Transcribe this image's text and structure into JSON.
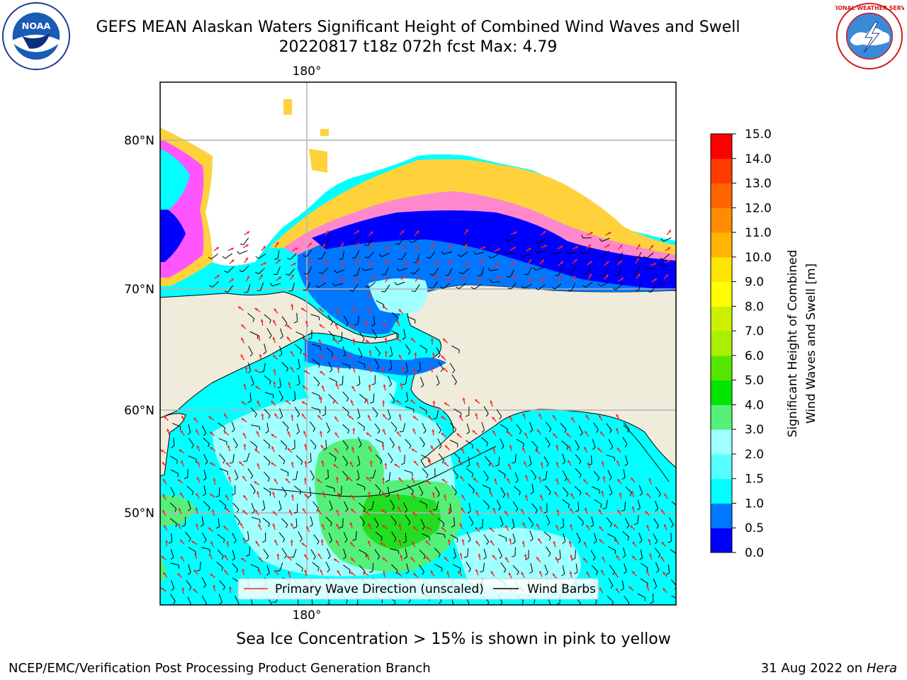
{
  "title": {
    "line1": "GEFS MEAN Alaskan Waters Significant Height of Combined Wind Waves and Swell",
    "line2": "20220817 t18z 072h fcst   Max: 4.79"
  },
  "logos": {
    "left": {
      "icon": "noaa-logo",
      "text": "NOAA"
    },
    "right": {
      "icon": "nws-logo",
      "text": "NATIONAL WEATHER SERVICE"
    }
  },
  "map": {
    "lon_label_top": "180°",
    "lon_label_bottom": "180°",
    "lat_labels": [
      "80°N",
      "70°N",
      "60°N",
      "50°N"
    ],
    "land_color": "#efecdc",
    "ocean_colors": {
      "low": "#00ffff",
      "mid": "#a0ffff",
      "high": "#55f07a",
      "peak": "#22dd22",
      "shallow": "#0077ff",
      "ice_edge": "#0000ff"
    },
    "ice_colors": [
      "#ff55ff",
      "#ffaa66",
      "#ffd23c"
    ]
  },
  "legend": {
    "primary_wave": "Primary Wave Direction (unscaled)",
    "wind_barbs": "Wind Barbs",
    "primary_wave_color": "#ff2222",
    "wind_barbs_color": "#000000"
  },
  "colorbar": {
    "label_line1": "Significant Height of Combined",
    "label_line2": "Wind Waves and Swell [m]",
    "ticks": [
      "0.0",
      "0.5",
      "1.0",
      "1.5",
      "2.0",
      "3.0",
      "4.0",
      "5.0",
      "6.0",
      "7.0",
      "8.0",
      "9.0",
      "10.0",
      "11.0",
      "12.0",
      "13.0",
      "14.0",
      "15.0"
    ],
    "colors": [
      "#0000ff",
      "#0077ff",
      "#00ffff",
      "#55ffff",
      "#a0ffff",
      "#55f07a",
      "#00e600",
      "#55e600",
      "#aaee00",
      "#ccf000",
      "#ffff00",
      "#ffe600",
      "#ffb400",
      "#ff8c00",
      "#ff6400",
      "#ff3c00",
      "#ff0000"
    ]
  },
  "caption": "Sea Ice Concentration > 15% is shown in pink to yellow",
  "footer": {
    "left": "NCEP/EMC/Verification Post Processing Product Generation Branch",
    "right_date": "31 Aug 2022 on",
    "right_host": "Hera"
  }
}
